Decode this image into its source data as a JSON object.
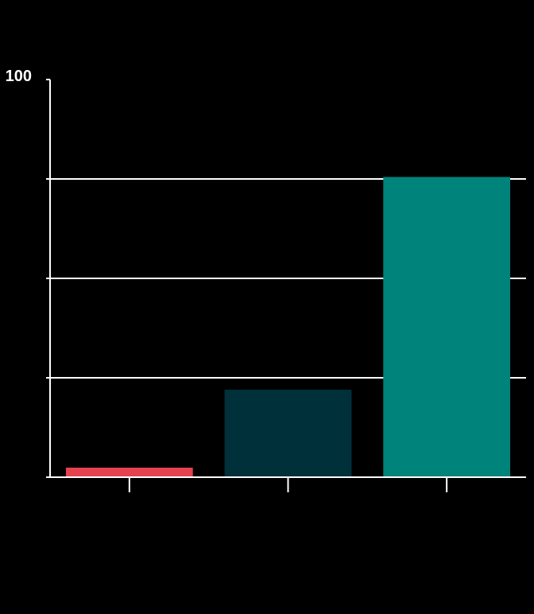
{
  "chart_data": {
    "type": "bar",
    "title": "",
    "xlabel": "",
    "ylabel": "",
    "ylim": [
      0,
      100
    ],
    "yticks": [
      0,
      25,
      50,
      75,
      100
    ],
    "ytick_labels": [
      "",
      "",
      "",
      "",
      "100"
    ],
    "gridlines": [
      25,
      50,
      75
    ],
    "categories": [
      "",
      "",
      ""
    ],
    "values": [
      2.4,
      22,
      75.5
    ],
    "colors": [
      "#E5414F",
      "#00313B",
      "#00837A"
    ],
    "legend": "none"
  }
}
